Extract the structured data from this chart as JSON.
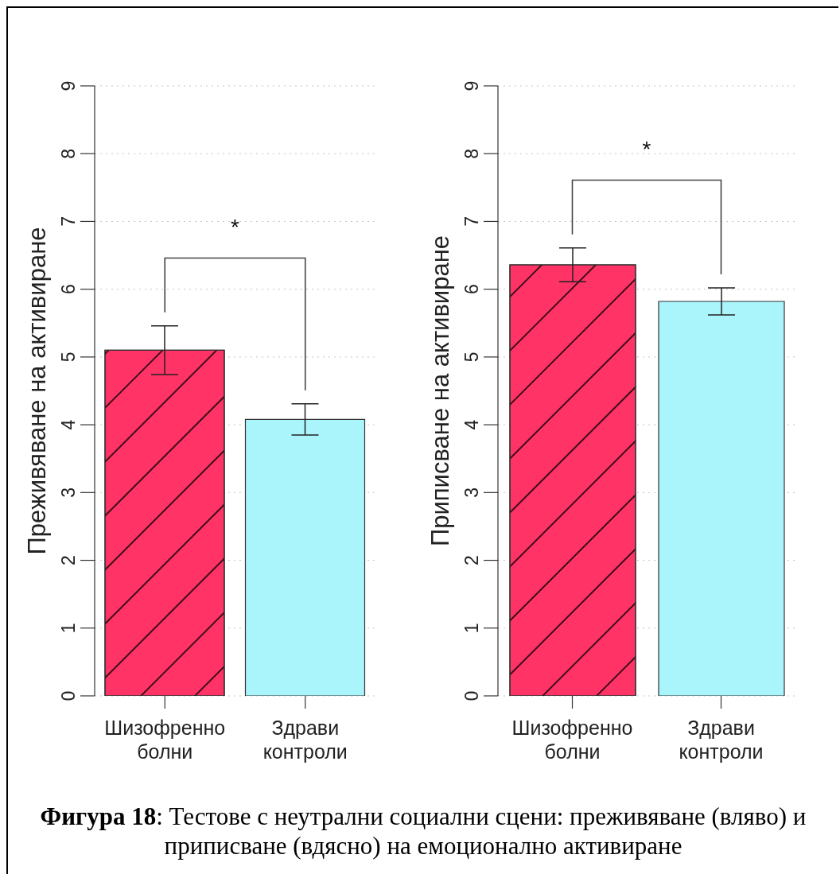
{
  "chart_data": [
    {
      "type": "bar",
      "ylabel": "Преживяване на активиране",
      "categories": [
        "Шизофренно болни",
        "Здрави контроли"
      ],
      "values": [
        5.1,
        4.08
      ],
      "errors": [
        0.36,
        0.23
      ],
      "colors": [
        "#ff3366",
        "#aaf4fc"
      ],
      "ylim": [
        0,
        9
      ],
      "yticks": [
        0,
        1,
        2,
        3,
        4,
        5,
        6,
        7,
        8,
        9
      ],
      "grid": "y",
      "annotations": [
        "*"
      ]
    },
    {
      "type": "bar",
      "ylabel": "Приписване на активиране",
      "categories": [
        "Шизофренно болни",
        "Здрави контроли"
      ],
      "values": [
        6.36,
        5.82
      ],
      "errors": [
        0.25,
        0.2
      ],
      "colors": [
        "#ff3366",
        "#aaf4fc"
      ],
      "ylim": [
        0,
        9
      ],
      "yticks": [
        0,
        1,
        2,
        3,
        4,
        5,
        6,
        7,
        8,
        9
      ],
      "grid": "y",
      "annotations": [
        "*",
        "Фигура 18: Тестове с неутрални социални сцени: преживяване (вляво) и приписване (вдясно) на емоционално активиране"
      ]
    }
  ]
}
